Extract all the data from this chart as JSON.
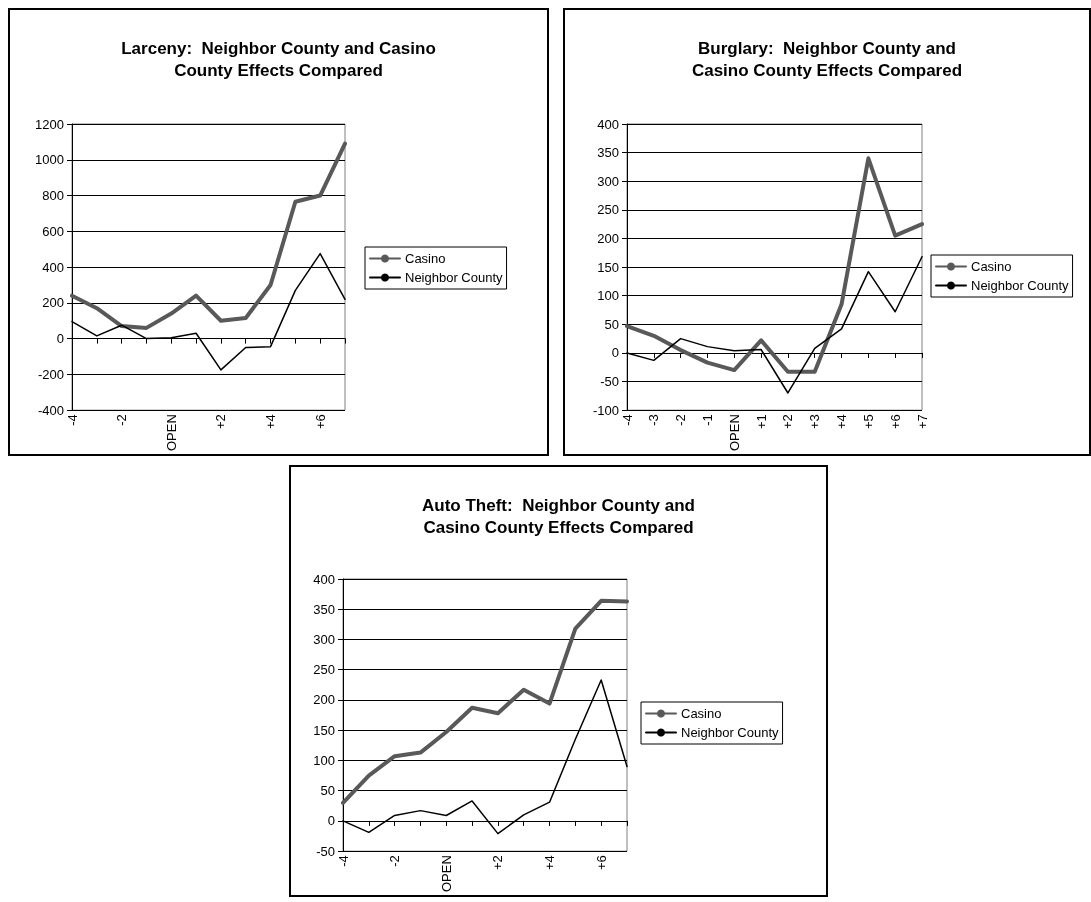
{
  "chart_data": [
    {
      "type": "line",
      "title": "Larceny:  Neighbor County and Casino County Effects Compared",
      "categories": [
        "-4",
        null,
        "-2",
        null,
        "OPEN",
        null,
        "+2",
        null,
        "+4",
        null,
        "+6",
        null
      ],
      "ylim": [
        -400,
        1200
      ],
      "yticks": [
        -400,
        -200,
        0,
        200,
        400,
        600,
        800,
        {
          "value": 1000,
          "label": "1000"
        },
        {
          "value": 1200,
          "label": "1200"
        }
      ],
      "grid": "y",
      "legend": "right",
      "marker": "none",
      "series": [
        {
          "name": "Casino",
          "color": "#595959",
          "values": [
            240,
            170,
            70,
            60,
            140,
            240,
            100,
            115,
            300,
            765,
            800,
            1090
          ]
        },
        {
          "name": "Neighbor County",
          "color": "#000000",
          "values": [
            95,
            15,
            75,
            0,
            5,
            30,
            -175,
            -50,
            -45,
            270,
            475,
            220
          ]
        }
      ]
    },
    {
      "type": "line",
      "title": "Burglary:  Neighbor County and Casino County Effects Compared",
      "categories": [
        "-4",
        "-3",
        "-2",
        "-1",
        "OPEN",
        "+1",
        "+2",
        "+3",
        "+4",
        "+5",
        "+6",
        "+7"
      ],
      "ylim": [
        -100,
        400
      ],
      "yticks": [
        -100,
        -50,
        0,
        50,
        100,
        150,
        200,
        250,
        300,
        350,
        400
      ],
      "grid": "y",
      "legend": "right",
      "marker": "none",
      "series": [
        {
          "name": "Casino",
          "color": "#595959",
          "values": [
            47,
            30,
            5,
            -17,
            -30,
            22,
            -33,
            -33,
            85,
            340,
            205,
            225
          ]
        },
        {
          "name": "Neighbor County",
          "color": "#000000",
          "values": [
            0,
            -13,
            25,
            11,
            4,
            6,
            -70,
            8,
            42,
            142,
            72,
            168
          ]
        }
      ]
    },
    {
      "type": "line",
      "title": "Auto Theft:  Neighbor County and Casino County Effects Compared",
      "categories": [
        "-4",
        null,
        "-2",
        null,
        "OPEN",
        null,
        "+2",
        null,
        "+4",
        null,
        "+6",
        null
      ],
      "ylim": [
        -50,
        400
      ],
      "yticks": [
        -50,
        0,
        50,
        100,
        150,
        200,
        250,
        300,
        350,
        400
      ],
      "grid": "y",
      "legend": "right",
      "marker": "none",
      "series": [
        {
          "name": "Casino",
          "color": "#595959",
          "values": [
            30,
            75,
            107,
            113,
            147,
            187,
            178,
            217,
            194,
            318,
            364,
            363
          ]
        },
        {
          "name": "Neighbor County",
          "color": "#000000",
          "values": [
            0,
            -19,
            9,
            17,
            9,
            33,
            -21,
            10,
            31,
            135,
            233,
            90
          ]
        }
      ]
    }
  ]
}
